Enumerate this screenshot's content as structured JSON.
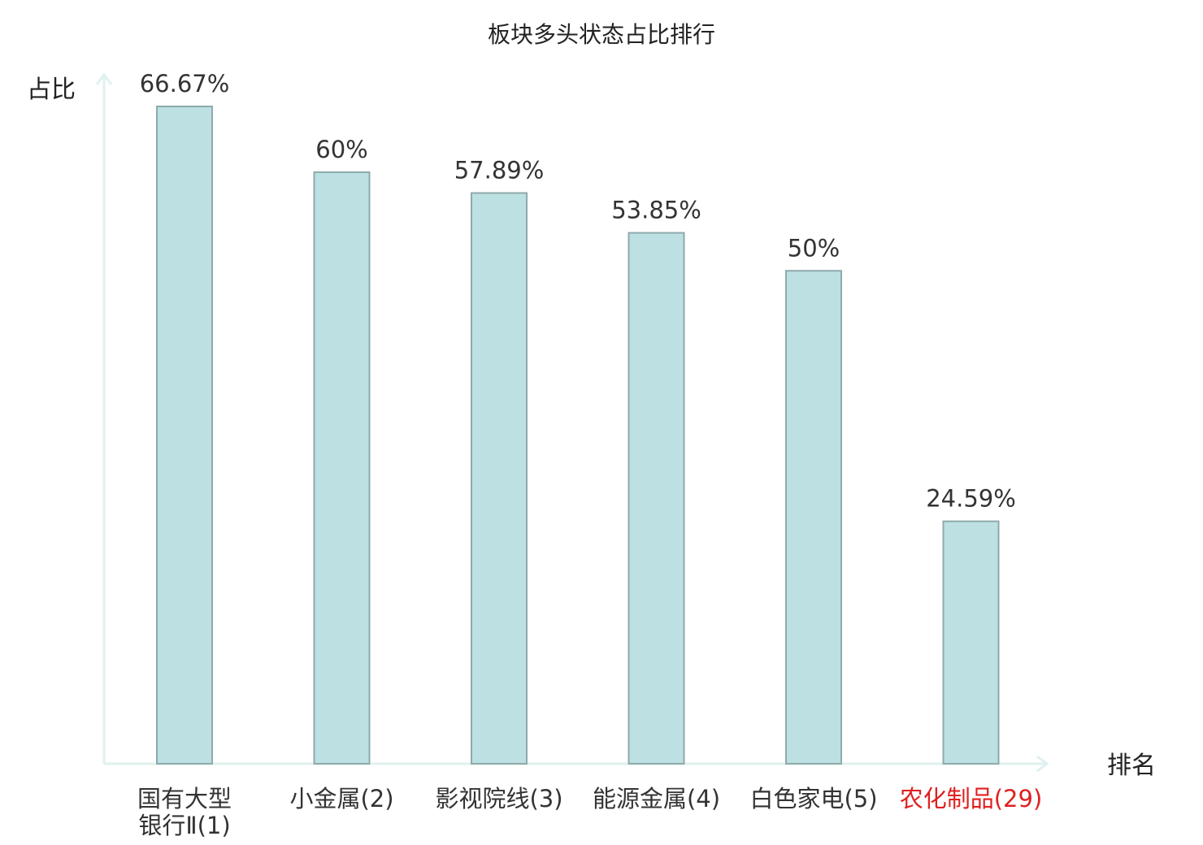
{
  "chart_data": {
    "type": "bar",
    "title": "板块多头状态占比排行",
    "xlabel": "排名",
    "ylabel": "占比",
    "categories": [
      "国有大型银行Ⅱ(1)",
      "小金属(2)",
      "影视院线(3)",
      "能源金属(4)",
      "白色家电(5)",
      "农化制品(29)"
    ],
    "category_lines": [
      [
        "国有大型",
        "银行Ⅱ(1)"
      ],
      [
        "小金属(2)"
      ],
      [
        "影视院线(3)"
      ],
      [
        "能源金属(4)"
      ],
      [
        "白色家电(5)"
      ],
      [
        "农化制品(29)"
      ]
    ],
    "highlight_category_index": 5,
    "values": [
      66.67,
      60,
      57.89,
      53.85,
      50,
      24.59
    ],
    "value_labels": [
      "66.67%",
      "60%",
      "57.89%",
      "53.85%",
      "50%",
      "24.59%"
    ],
    "ylim": [
      0,
      66.67
    ],
    "grid": false,
    "legend": "none"
  },
  "colors": {
    "bar_fill": "#bde0e3",
    "bar_stroke": "#8faaab",
    "axis": "#dff1ee",
    "text": "#333333",
    "highlight_text": "#e02020",
    "title_text": "#222222"
  }
}
